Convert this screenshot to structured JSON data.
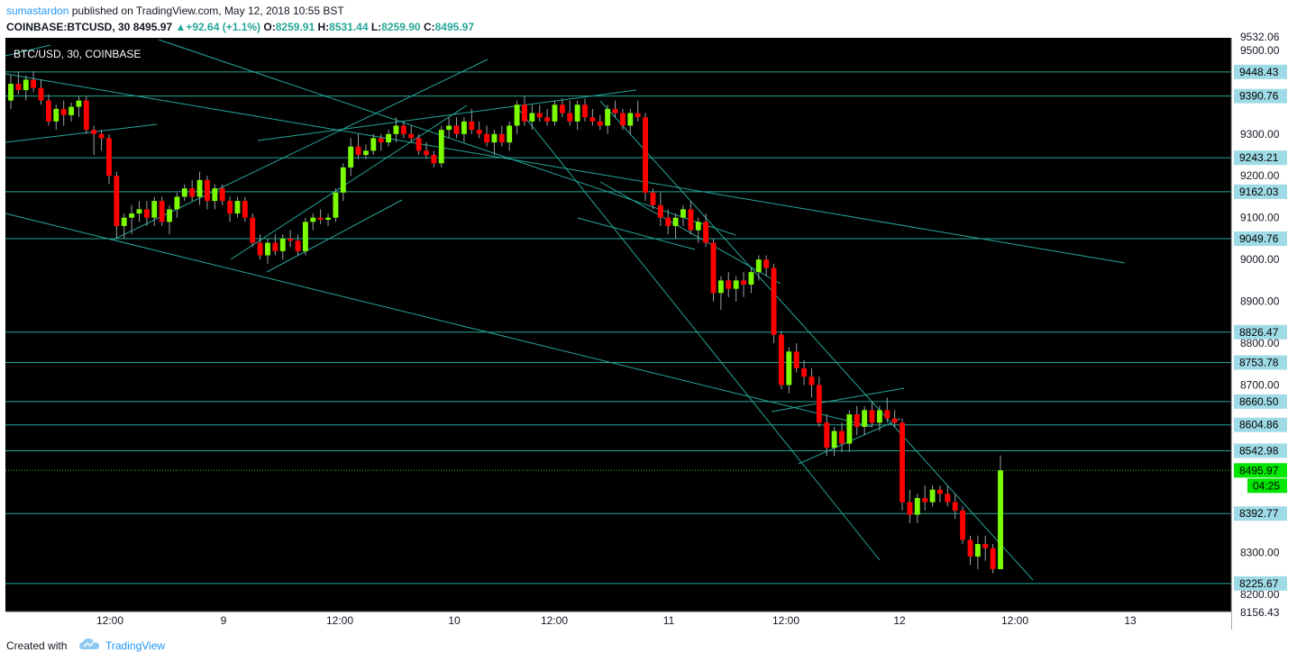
{
  "header": {
    "author": "sumastardon",
    "published_text": "published on TradingView.com, May 12, 2018 10:55 BST",
    "symbol": "COINBASE:BTCUSD, 30",
    "last": "8495.97",
    "change": "+92.64 (+1.1%)",
    "o_label": "O:",
    "o_value": "8259.91",
    "h_label": "H:",
    "h_value": "8531.44",
    "l_label": "L:",
    "l_value": "8259.90",
    "c_label": "C:",
    "c_value": "8495.97"
  },
  "chart_title": "BTC/USD, 30, COINBASE",
  "footer": {
    "created_with": "Created with",
    "brand": "TradingView"
  },
  "colors": {
    "up": "#7cfc00",
    "down": "#ff0000",
    "trend": "#26a69a",
    "level_label_bg": "#9fdbe6",
    "price_tag_bg": "#00e600"
  },
  "chart_data": {
    "type": "candlestick",
    "symbol": "BTC/USD",
    "interval": "30",
    "exchange": "COINBASE",
    "ylim": [
      8156.43,
      9532.06
    ],
    "y_ticks": [
      "9532.06",
      "9500.00",
      "9300.00",
      "9200.00",
      "9100.00",
      "9000.00",
      "8900.00",
      "8800.00",
      "8700.00",
      "8300.00",
      "8200.00",
      "8156.43"
    ],
    "x_ticks": [
      "12:00",
      "9",
      "12:00",
      "10",
      "12:00",
      "11",
      "12:00",
      "12",
      "12:00",
      "13"
    ],
    "horizontal_levels": [
      "9448.43",
      "9390.76",
      "9243.21",
      "9162.03",
      "9049.76",
      "8826.47",
      "8753.78",
      "8660.50",
      "8604.86",
      "8542.98",
      "8392.77",
      "8225.67"
    ],
    "current_price": "8495.97",
    "countdown": "04:25",
    "candles": [
      [
        9380,
        9440,
        9360,
        9420
      ],
      [
        9420,
        9450,
        9395,
        9405
      ],
      [
        9405,
        9440,
        9380,
        9430
      ],
      [
        9430,
        9450,
        9400,
        9410
      ],
      [
        9410,
        9430,
        9370,
        9380
      ],
      [
        9380,
        9395,
        9320,
        9330
      ],
      [
        9330,
        9370,
        9310,
        9360
      ],
      [
        9360,
        9380,
        9320,
        9345
      ],
      [
        9345,
        9375,
        9330,
        9365
      ],
      [
        9365,
        9390,
        9340,
        9380
      ],
      [
        9380,
        9390,
        9300,
        9310
      ],
      [
        9310,
        9320,
        9250,
        9300
      ],
      [
        9300,
        9310,
        9260,
        9290
      ],
      [
        9290,
        9300,
        9180,
        9200
      ],
      [
        9200,
        9210,
        9050,
        9080
      ],
      [
        9080,
        9110,
        9050,
        9100
      ],
      [
        9100,
        9130,
        9060,
        9110
      ],
      [
        9110,
        9140,
        9090,
        9120
      ],
      [
        9120,
        9140,
        9080,
        9100
      ],
      [
        9100,
        9150,
        9080,
        9140
      ],
      [
        9140,
        9150,
        9080,
        9090
      ],
      [
        9090,
        9130,
        9060,
        9120
      ],
      [
        9120,
        9160,
        9100,
        9150
      ],
      [
        9150,
        9180,
        9140,
        9170
      ],
      [
        9170,
        9190,
        9140,
        9150
      ],
      [
        9150,
        9210,
        9130,
        9190
      ],
      [
        9190,
        9200,
        9120,
        9140
      ],
      [
        9140,
        9180,
        9120,
        9170
      ],
      [
        9170,
        9180,
        9130,
        9140
      ],
      [
        9140,
        9150,
        9090,
        9110
      ],
      [
        9110,
        9150,
        9100,
        9140
      ],
      [
        9140,
        9150,
        9090,
        9100
      ],
      [
        9100,
        9110,
        9030,
        9040
      ],
      [
        9040,
        9060,
        9000,
        9010
      ],
      [
        9010,
        9050,
        8990,
        9040
      ],
      [
        9040,
        9060,
        9010,
        9020
      ],
      [
        9020,
        9060,
        9000,
        9050
      ],
      [
        9050,
        9070,
        9030,
        9045
      ],
      [
        9045,
        9060,
        9010,
        9020
      ],
      [
        9020,
        9100,
        9010,
        9090
      ],
      [
        9090,
        9110,
        9070,
        9100
      ],
      [
        9100,
        9120,
        9085,
        9095
      ],
      [
        9095,
        9110,
        9080,
        9100
      ],
      [
        9100,
        9170,
        9090,
        9160
      ],
      [
        9160,
        9230,
        9140,
        9220
      ],
      [
        9220,
        9290,
        9200,
        9270
      ],
      [
        9270,
        9300,
        9240,
        9250
      ],
      [
        9250,
        9275,
        9240,
        9260
      ],
      [
        9260,
        9300,
        9250,
        9290
      ],
      [
        9290,
        9300,
        9260,
        9280
      ],
      [
        9280,
        9310,
        9270,
        9300
      ],
      [
        9300,
        9340,
        9280,
        9320
      ],
      [
        9320,
        9330,
        9290,
        9300
      ],
      [
        9300,
        9320,
        9280,
        9290
      ],
      [
        9290,
        9300,
        9250,
        9260
      ],
      [
        9260,
        9280,
        9240,
        9250
      ],
      [
        9250,
        9260,
        9220,
        9230
      ],
      [
        9230,
        9320,
        9220,
        9310
      ],
      [
        9310,
        9340,
        9290,
        9320
      ],
      [
        9320,
        9340,
        9290,
        9300
      ],
      [
        9300,
        9340,
        9280,
        9330
      ],
      [
        9330,
        9360,
        9300,
        9310
      ],
      [
        9310,
        9330,
        9290,
        9300
      ],
      [
        9300,
        9320,
        9270,
        9280
      ],
      [
        9280,
        9310,
        9250,
        9300
      ],
      [
        9300,
        9320,
        9270,
        9280
      ],
      [
        9280,
        9330,
        9260,
        9320
      ],
      [
        9320,
        9380,
        9300,
        9370
      ],
      [
        9370,
        9390,
        9320,
        9330
      ],
      [
        9330,
        9370,
        9310,
        9350
      ],
      [
        9350,
        9370,
        9330,
        9340
      ],
      [
        9340,
        9360,
        9320,
        9330
      ],
      [
        9330,
        9380,
        9320,
        9370
      ],
      [
        9370,
        9385,
        9340,
        9350
      ],
      [
        9350,
        9380,
        9320,
        9330
      ],
      [
        9330,
        9380,
        9310,
        9370
      ],
      [
        9370,
        9385,
        9330,
        9340
      ],
      [
        9340,
        9360,
        9320,
        9330
      ],
      [
        9330,
        9345,
        9310,
        9320
      ],
      [
        9320,
        9370,
        9300,
        9360
      ],
      [
        9360,
        9380,
        9340,
        9350
      ],
      [
        9350,
        9360,
        9310,
        9320
      ],
      [
        9320,
        9360,
        9300,
        9350
      ],
      [
        9350,
        9380,
        9330,
        9340
      ],
      [
        9340,
        9350,
        9140,
        9160
      ],
      [
        9160,
        9170,
        9120,
        9130
      ],
      [
        9130,
        9160,
        9080,
        9100
      ],
      [
        9100,
        9120,
        9060,
        9080
      ],
      [
        9080,
        9110,
        9050,
        9100
      ],
      [
        9100,
        9130,
        9080,
        9120
      ],
      [
        9120,
        9140,
        9060,
        9070
      ],
      [
        9070,
        9100,
        9040,
        9090
      ],
      [
        9090,
        9110,
        9030,
        9040
      ],
      [
        9040,
        9050,
        8900,
        8920
      ],
      [
        8920,
        8960,
        8880,
        8950
      ],
      [
        8950,
        8970,
        8910,
        8930
      ],
      [
        8930,
        8960,
        8900,
        8950
      ],
      [
        8950,
        8970,
        8910,
        8940
      ],
      [
        8940,
        8980,
        8920,
        8970
      ],
      [
        8970,
        9010,
        8950,
        9000
      ],
      [
        9000,
        9010,
        8960,
        8980
      ],
      [
        8980,
        8990,
        8800,
        8820
      ],
      [
        8820,
        8830,
        8690,
        8700
      ],
      [
        8700,
        8790,
        8680,
        8780
      ],
      [
        8780,
        8800,
        8730,
        8740
      ],
      [
        8740,
        8760,
        8700,
        8720
      ],
      [
        8720,
        8740,
        8670,
        8700
      ],
      [
        8700,
        8720,
        8600,
        8610
      ],
      [
        8610,
        8630,
        8530,
        8550
      ],
      [
        8550,
        8600,
        8530,
        8590
      ],
      [
        8590,
        8610,
        8540,
        8560
      ],
      [
        8560,
        8640,
        8540,
        8630
      ],
      [
        8630,
        8650,
        8580,
        8600
      ],
      [
        8600,
        8650,
        8580,
        8640
      ],
      [
        8640,
        8660,
        8600,
        8610
      ],
      [
        8610,
        8650,
        8590,
        8640
      ],
      [
        8640,
        8670,
        8610,
        8620
      ],
      [
        8620,
        8640,
        8600,
        8610
      ],
      [
        8610,
        8620,
        8400,
        8420
      ],
      [
        8420,
        8450,
        8370,
        8390
      ],
      [
        8390,
        8440,
        8370,
        8430
      ],
      [
        8430,
        8460,
        8400,
        8420
      ],
      [
        8420,
        8460,
        8410,
        8450
      ],
      [
        8450,
        8460,
        8420,
        8440
      ],
      [
        8440,
        8460,
        8410,
        8420
      ],
      [
        8420,
        8440,
        8380,
        8400
      ],
      [
        8400,
        8410,
        8320,
        8330
      ],
      [
        8330,
        8340,
        8270,
        8290
      ],
      [
        8290,
        8340,
        8260,
        8320
      ],
      [
        8320,
        8340,
        8280,
        8310
      ],
      [
        8310,
        8320,
        8250,
        8260
      ],
      [
        8259.91,
        8531.44,
        8259.9,
        8495.97
      ]
    ]
  }
}
